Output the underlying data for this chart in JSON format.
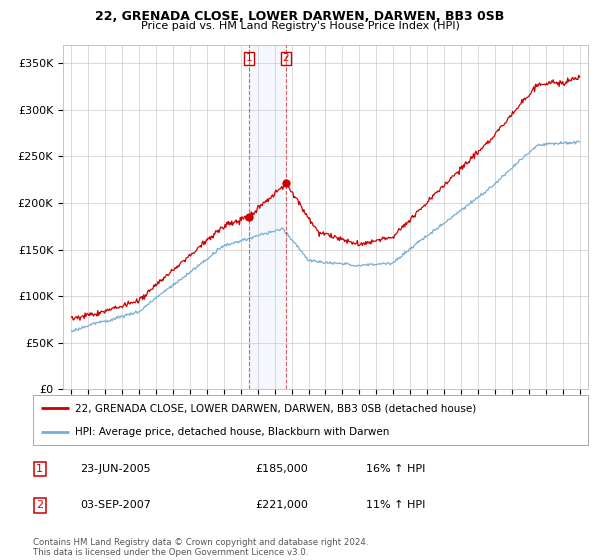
{
  "title": "22, GRENADA CLOSE, LOWER DARWEN, DARWEN, BB3 0SB",
  "subtitle": "Price paid vs. HM Land Registry's House Price Index (HPI)",
  "legend_line1": "22, GRENADA CLOSE, LOWER DARWEN, DARWEN, BB3 0SB (detached house)",
  "legend_line2": "HPI: Average price, detached house, Blackburn with Darwen",
  "sale1_date": "23-JUN-2005",
  "sale1_price": "£185,000",
  "sale1_hpi": "16% ↑ HPI",
  "sale2_date": "03-SEP-2007",
  "sale2_price": "£221,000",
  "sale2_hpi": "11% ↑ HPI",
  "footnote": "Contains HM Land Registry data © Crown copyright and database right 2024.\nThis data is licensed under the Open Government Licence v3.0.",
  "red_color": "#cc0000",
  "blue_color": "#7aadd4",
  "sale1_x": 2005.47,
  "sale1_y": 185000,
  "sale2_x": 2007.67,
  "sale2_y": 221000,
  "ylim": [
    0,
    370000
  ],
  "xlim_start": 1994.5,
  "xlim_end": 2025.5,
  "background": "#ffffff",
  "grid_color": "#cccccc"
}
